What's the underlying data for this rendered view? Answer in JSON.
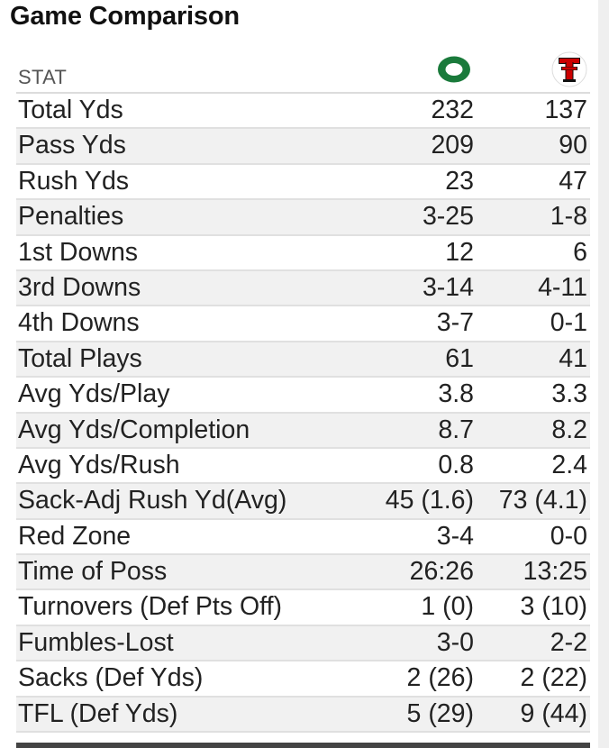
{
  "title": "Game Comparison",
  "header": {
    "stat_label": "STAT",
    "team1_icon": "oregon-o-logo-icon",
    "team2_icon": "texas-tech-double-t-logo-icon"
  },
  "colors": {
    "oregon_green": "#1a7a3b",
    "texas_tech_red": "#cc0000",
    "alt_row": "#f1f1f1",
    "divider": "#e0e0e0"
  },
  "rows": [
    {
      "stat": "Total Yds",
      "team1": "232",
      "team2": "137"
    },
    {
      "stat": "Pass Yds",
      "team1": "209",
      "team2": "90"
    },
    {
      "stat": "Rush Yds",
      "team1": "23",
      "team2": "47"
    },
    {
      "stat": "Penalties",
      "team1": "3-25",
      "team2": "1-8"
    },
    {
      "stat": "1st Downs",
      "team1": "12",
      "team2": "6"
    },
    {
      "stat": "3rd Downs",
      "team1": "3-14",
      "team2": "4-11"
    },
    {
      "stat": "4th Downs",
      "team1": "3-7",
      "team2": "0-1"
    },
    {
      "stat": "Total Plays",
      "team1": "61",
      "team2": "41"
    },
    {
      "stat": "Avg Yds/Play",
      "team1": "3.8",
      "team2": "3.3"
    },
    {
      "stat": "Avg Yds/Completion",
      "team1": "8.7",
      "team2": "8.2"
    },
    {
      "stat": "Avg Yds/Rush",
      "team1": "0.8",
      "team2": "2.4"
    },
    {
      "stat": "Sack-Adj Rush Yd(Avg)",
      "team1": "45 (1.6)",
      "team2": "73 (4.1)"
    },
    {
      "stat": "Red Zone",
      "team1": "3-4",
      "team2": "0-0"
    },
    {
      "stat": "Time of Poss",
      "team1": "26:26",
      "team2": "13:25"
    },
    {
      "stat": "Turnovers (Def Pts Off)",
      "team1": "1 (0)",
      "team2": "3 (10)"
    },
    {
      "stat": "Fumbles-Lost",
      "team1": "3-0",
      "team2": "2-2"
    },
    {
      "stat": "Sacks (Def Yds)",
      "team1": "2 (26)",
      "team2": "2 (22)"
    },
    {
      "stat": "TFL (Def Yds)",
      "team1": "5 (29)",
      "team2": "9 (44)"
    }
  ]
}
